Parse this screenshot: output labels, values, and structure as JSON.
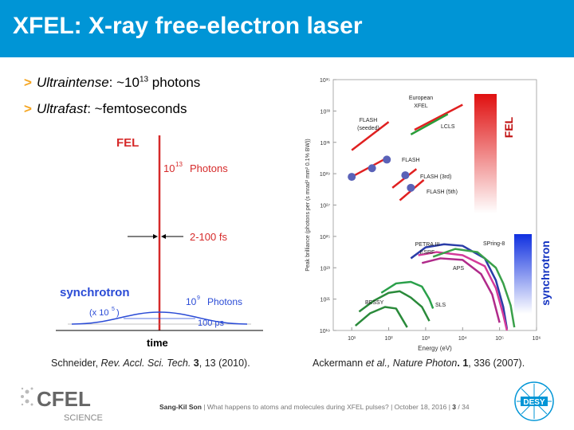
{
  "slide_title": "XFEL: X-ray free-electron laser",
  "bullets": [
    {
      "term": "Ultraintense",
      "rest_pre": ": ~10",
      "sup": "13",
      "rest_post": " photons"
    },
    {
      "term": "Ultrafast",
      "rest_pre": ": ~femtoseconds",
      "sup": "",
      "rest_post": ""
    }
  ],
  "left_figure": {
    "fel_label": "FEL",
    "fel_photons_base": "10",
    "fel_photons_exp": "13",
    "fel_photons_word": "Photons",
    "fel_duration": "2-100 fs",
    "sync_label": "synchrotron",
    "sync_scale_pre": "(x 10",
    "sync_scale_exp": "5",
    "sync_scale_post": ")",
    "sync_photons_base": "10",
    "sync_photons_exp": "9",
    "sync_photons_word": "Photons",
    "sync_duration": "100 ps",
    "x_axis_label": "time",
    "colors": {
      "fel": "#d62a2a",
      "sync": "#2a4bd6"
    }
  },
  "citations": {
    "left": {
      "authors": "Schneider, ",
      "journal": "Rev. Accl. Sci. Tech.",
      "vol": " 3",
      "rest": ", 13 (2010)."
    },
    "right": {
      "authors": "Ackermann ",
      "etal": "et al.",
      "journal": ", Nature Photon",
      "vol": ". 1",
      "rest": ", 336 (2007)."
    }
  },
  "chart_data": {
    "type": "line",
    "xlabel": "Energy (eV)",
    "ylabel": "Peak brilliance (photons per (s mrad² mm² 0.1% BW))",
    "x_scale": "log",
    "y_scale": "log",
    "x_ticks": [
      "10¹",
      "10²",
      "10³",
      "10⁴",
      "10⁵",
      "10⁶"
    ],
    "y_ticks": [
      "10¹⁹",
      "10²¹",
      "10²³",
      "10²⁵",
      "10²⁷",
      "10²⁹",
      "10³¹",
      "10³³",
      "10³⁵"
    ],
    "xlim_exp": [
      0.5,
      6
    ],
    "ylim_exp": [
      19,
      35
    ],
    "series_labels": {
      "european_xfel": "European\nXFEL",
      "flash_seeded": "FLASH\n(seeded)",
      "lcls": "LCLS",
      "flash": "FLASH",
      "flash3": "FLASH (3rd)",
      "flash5": "FLASH (5th)",
      "petra": "PETRA III",
      "esrf": "ESRF",
      "spring8": "SPring-8",
      "aps": "APS",
      "bessy": "BESSY",
      "sls": "SLS"
    },
    "fel_bar_label": "FEL",
    "sync_bar_label": "synchrotron",
    "lines": [
      {
        "name": "flash_seeded",
        "color": "#e02020",
        "pts": [
          [
            1.0,
            30.5
          ],
          [
            2.0,
            32.3
          ]
        ]
      },
      {
        "name": "european_xfel",
        "color": "#e02020",
        "pts": [
          [
            2.7,
            31.8
          ],
          [
            4.0,
            33.4
          ]
        ]
      },
      {
        "name": "lcls",
        "color": "#2a9d3a",
        "pts": [
          [
            2.6,
            31.5
          ],
          [
            3.6,
            32.8
          ]
        ]
      },
      {
        "name": "flash",
        "color": "#e02020",
        "pts": [
          [
            1.0,
            28.8
          ],
          [
            1.95,
            30.0
          ]
        ]
      },
      {
        "name": "flash3",
        "color": "#e02020",
        "pts": [
          [
            2.1,
            28.1
          ],
          [
            2.75,
            29.3
          ]
        ]
      },
      {
        "name": "flash5",
        "color": "#e02020",
        "pts": [
          [
            2.3,
            27.3
          ],
          [
            2.95,
            28.6
          ]
        ]
      }
    ],
    "dots": [
      [
        1.0,
        28.8
      ],
      [
        1.55,
        29.35
      ],
      [
        1.95,
        29.9
      ],
      [
        2.45,
        28.9
      ],
      [
        2.6,
        28.1
      ]
    ],
    "curves": [
      {
        "name": "petra",
        "color": "#2a3da8",
        "pts": [
          [
            2.6,
            23.6
          ],
          [
            3.0,
            24.3
          ],
          [
            3.5,
            24.5
          ],
          [
            4.0,
            24.4
          ],
          [
            4.6,
            23.6
          ],
          [
            4.9,
            22.2
          ],
          [
            5.1,
            20.5
          ],
          [
            5.2,
            19.1
          ]
        ]
      },
      {
        "name": "esrf",
        "color": "#d43a9a",
        "pts": [
          [
            2.8,
            23.8
          ],
          [
            3.3,
            24.0
          ],
          [
            4.0,
            23.8
          ],
          [
            4.6,
            23.1
          ],
          [
            4.9,
            21.7
          ],
          [
            5.1,
            20.0
          ],
          [
            5.2,
            19.0
          ]
        ]
      },
      {
        "name": "spring8",
        "color": "#3aa04a",
        "pts": [
          [
            3.2,
            23.7
          ],
          [
            3.8,
            24.2
          ],
          [
            4.4,
            24.0
          ],
          [
            4.9,
            23.0
          ],
          [
            5.1,
            22.0
          ],
          [
            5.3,
            20.6
          ],
          [
            5.4,
            19.2
          ]
        ]
      },
      {
        "name": "aps",
        "color": "#b02a8a",
        "pts": [
          [
            2.9,
            23.3
          ],
          [
            3.4,
            23.6
          ],
          [
            4.0,
            23.5
          ],
          [
            4.5,
            22.6
          ],
          [
            4.8,
            21.3
          ],
          [
            5.0,
            19.5
          ]
        ]
      },
      {
        "name": "bessy",
        "color": "#2a8a3a",
        "pts": [
          [
            1.2,
            20.2
          ],
          [
            1.6,
            20.9
          ],
          [
            2.0,
            21.4
          ],
          [
            2.3,
            21.5
          ],
          [
            2.6,
            21.1
          ],
          [
            2.9,
            20.5
          ],
          [
            3.1,
            19.6
          ]
        ]
      },
      {
        "name": "sls",
        "color": "#2aa04a",
        "pts": [
          [
            1.8,
            21.4
          ],
          [
            2.2,
            22.0
          ],
          [
            2.6,
            22.1
          ],
          [
            2.9,
            21.8
          ],
          [
            3.1,
            21.0
          ],
          [
            3.2,
            20.4
          ]
        ]
      },
      {
        "name": "bessy_low",
        "color": "#2a8a3a",
        "pts": [
          [
            1.1,
            19.3
          ],
          [
            1.5,
            20.1
          ],
          [
            1.9,
            20.5
          ],
          [
            2.2,
            20.4
          ],
          [
            2.4,
            19.6
          ],
          [
            2.5,
            19.2
          ]
        ]
      }
    ]
  },
  "footer": {
    "author": "Sang-Kil Son",
    "text": " | What happens to atoms and molecules during XFEL pulses? | October 18, 2016 | ",
    "page": "3",
    "total": " / 34"
  },
  "logos": {
    "cfel": "CFEL",
    "science": "SCIENCE",
    "desy": "DESY"
  }
}
